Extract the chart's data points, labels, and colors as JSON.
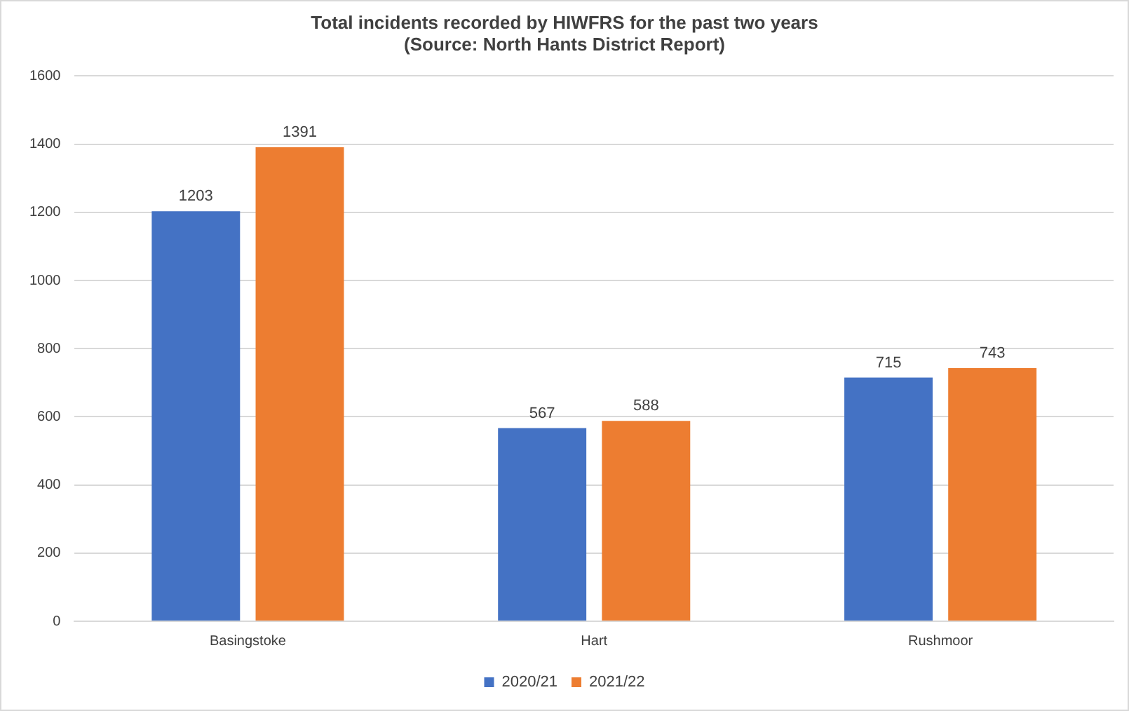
{
  "chart_data": {
    "type": "bar",
    "title": "Total incidents recorded by HIWFRS for the past two years",
    "subtitle": "(Source: North Hants District Report)",
    "categories": [
      "Basingstoke",
      "Hart",
      "Rushmoor"
    ],
    "series": [
      {
        "name": "2020/21",
        "color": "#4472c4",
        "values": [
          1203,
          567,
          715
        ]
      },
      {
        "name": "2021/22",
        "color": "#ed7d31",
        "values": [
          1391,
          588,
          743
        ]
      }
    ],
    "ylim": [
      0,
      1600
    ],
    "yticks": [
      0,
      200,
      400,
      600,
      800,
      1000,
      1200,
      1400,
      1600
    ],
    "grid": "y",
    "legend": "bottom",
    "data_labels": true
  }
}
